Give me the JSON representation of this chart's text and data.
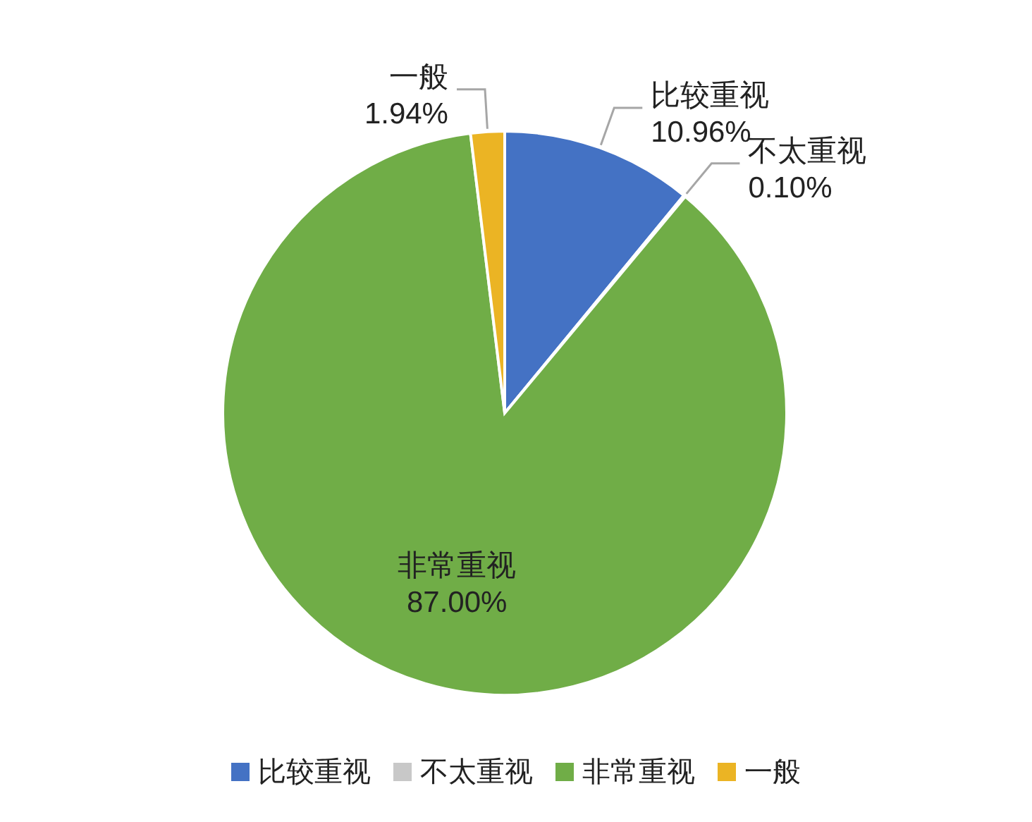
{
  "chart_data": {
    "type": "pie",
    "categories": [
      "比较重视",
      "不太重视",
      "非常重视",
      "一般"
    ],
    "values": [
      10.96,
      0.1,
      87.0,
      1.94
    ],
    "value_labels": [
      "10.96%",
      "0.10%",
      "87.00%",
      "1.94%"
    ],
    "colors": [
      "#4472c4",
      "#c8c8c8",
      "#70ad47",
      "#ebb424"
    ],
    "legend": "bottom"
  }
}
